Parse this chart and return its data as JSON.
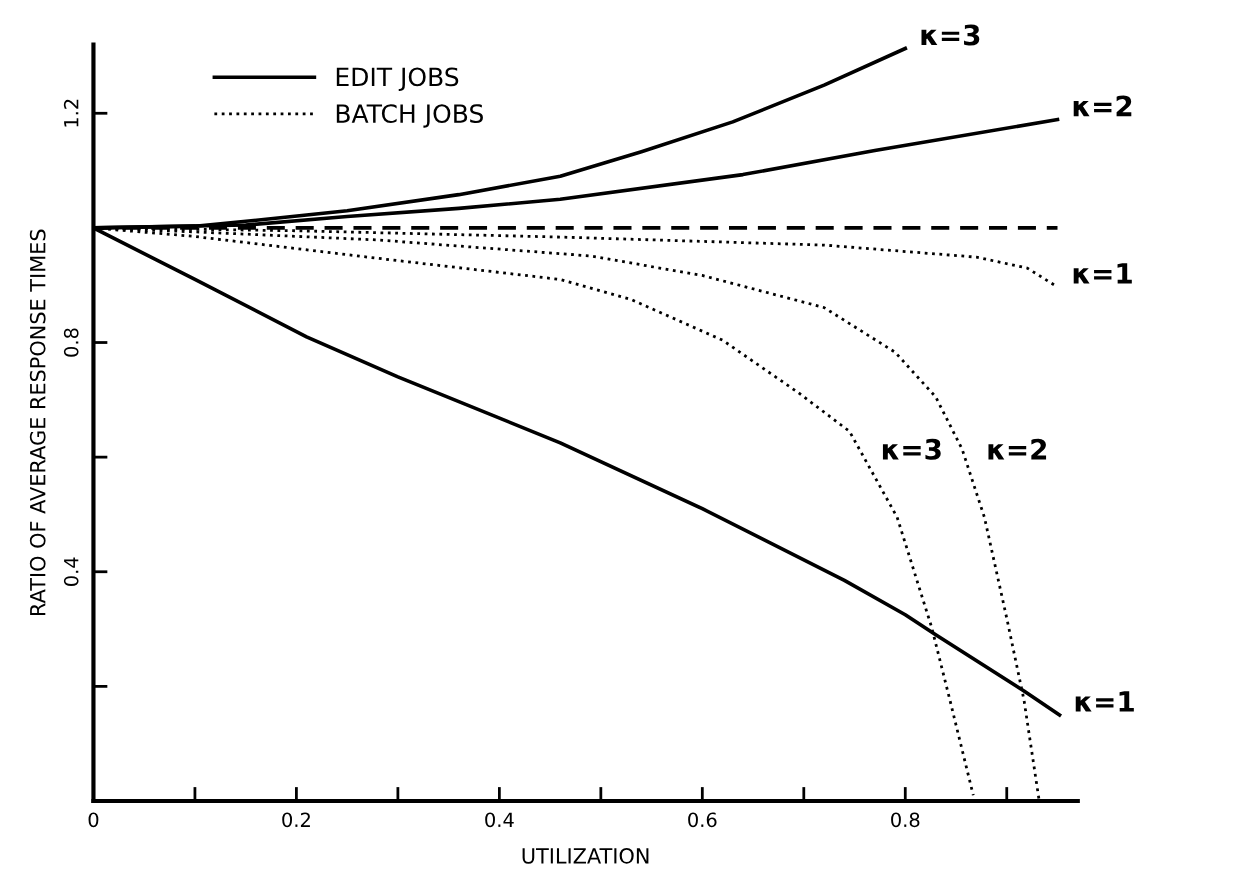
{
  "chart_data": {
    "type": "line",
    "xlabel": "UTILIZATION",
    "ylabel": "RATIO OF AVERAGE RESPONSE TIMES",
    "xlim": [
      0,
      0.97
    ],
    "ylim": [
      0,
      1.32
    ],
    "xticks": [
      0,
      {
        "value": 0.1,
        "label": null
      },
      0.2,
      {
        "value": 0.3,
        "label": null
      },
      0.4,
      {
        "value": 0.5,
        "label": null
      },
      0.6,
      {
        "value": 0.7,
        "label": null
      },
      0.8,
      {
        "value": 0.9,
        "label": null
      }
    ],
    "yticks": [
      {
        "value": 0.2,
        "label": null
      },
      0.4,
      {
        "value": 0.6,
        "label": null
      },
      0.8,
      {
        "value": 1.0,
        "label": null
      },
      1.2
    ],
    "grid": false,
    "legend": "top left",
    "marker": "none",
    "series": [
      {
        "name": "EDIT JOBS",
        "color": "#000000",
        "line_style": "solid",
        "x": [
          0,
          0.1,
          0.21,
          0.3,
          0.46,
          0.6,
          0.74,
          0.8,
          0.83,
          0.917,
          0.952
        ],
        "values": [
          1.0,
          0.91,
          0.81,
          0.74,
          0.625,
          0.51,
          0.385,
          0.325,
          0.29,
          0.192,
          0.15
        ]
      },
      {
        "color": "#000000",
        "line_style": "solid",
        "x": [
          0,
          0.15,
          0.25,
          0.36,
          0.46,
          0.64,
          0.77,
          0.95
        ],
        "values": [
          1.0,
          1.005,
          1.02,
          1.034,
          1.05,
          1.093,
          1.135,
          1.189
        ]
      },
      {
        "color": "#000000",
        "line_style": "solid",
        "x": [
          0,
          0.1,
          0.17,
          0.25,
          0.36,
          0.46,
          0.54,
          0.63,
          0.72,
          0.8
        ],
        "values": [
          1.0,
          1.003,
          1.015,
          1.03,
          1.058,
          1.09,
          1.133,
          1.185,
          1.249,
          1.313
        ]
      },
      {
        "color": "#000000",
        "line_style": "dashed",
        "x": [
          0,
          0.95
        ],
        "values": [
          1.0,
          1.0
        ]
      },
      {
        "name": "BATCH JOBS",
        "color": "#000000",
        "line_style": "dotted",
        "x": [
          0,
          0.2,
          0.46,
          0.72,
          0.87,
          0.92,
          0.95
        ],
        "values": [
          1.0,
          0.995,
          0.984,
          0.97,
          0.949,
          0.93,
          0.897
        ]
      },
      {
        "color": "#000000",
        "line_style": "dotted",
        "x": [
          0,
          0.1,
          0.28,
          0.49,
          0.6,
          0.72,
          0.79,
          0.83,
          0.856,
          0.878,
          0.9,
          0.917,
          0.932
        ],
        "values": [
          1.0,
          0.993,
          0.979,
          0.951,
          0.917,
          0.861,
          0.783,
          0.705,
          0.614,
          0.495,
          0.319,
          0.176,
          0.0
        ]
      },
      {
        "color": "#000000",
        "line_style": "dotted",
        "x": [
          0,
          0.1,
          0.28,
          0.46,
          0.53,
          0.62,
          0.695,
          0.745,
          0.792,
          0.826,
          0.844,
          0.867
        ],
        "values": [
          1.0,
          0.985,
          0.947,
          0.91,
          0.875,
          0.804,
          0.712,
          0.645,
          0.495,
          0.303,
          0.176,
          0.01
        ]
      }
    ],
    "annotations": [
      {
        "text": "κ=3",
        "x": 0.8,
        "y": 1.313
      },
      {
        "text": "κ=2",
        "x": 0.95,
        "y": 1.189
      },
      {
        "text": "κ=1",
        "x": 0.95,
        "y": 0.897
      },
      {
        "text": "κ=1",
        "x": 0.952,
        "y": 0.15
      },
      {
        "text": "κ=3",
        "x": 0.762,
        "y": 0.59
      },
      {
        "text": "κ=2",
        "x": 0.866,
        "y": 0.59
      }
    ]
  }
}
